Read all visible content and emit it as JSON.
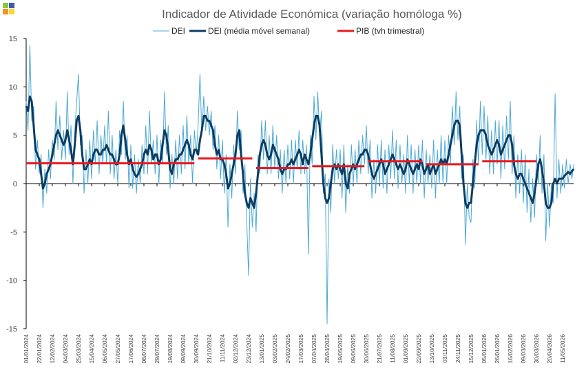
{
  "chart_data": {
    "type": "line",
    "title": "Indicador de Atividade Económica (variação homóloga %)",
    "categories": [
      "01/01/2024",
      null,
      null,
      null,
      null,
      null,
      null,
      "22/01/2024",
      null,
      null,
      null,
      null,
      null,
      null,
      "12/02/2024",
      null,
      null,
      null,
      null,
      null,
      null,
      "04/03/2024",
      null,
      null,
      null,
      null,
      null,
      null,
      "25/03/2024",
      null,
      null,
      null,
      null,
      null,
      null,
      "15/04/2024",
      null,
      null,
      null,
      null,
      null,
      null,
      "06/05/2024",
      null,
      null,
      null,
      null,
      null,
      null,
      "27/05/2024",
      null,
      null,
      null,
      null,
      null,
      null,
      "17/06/2024",
      null,
      null,
      null,
      null,
      null,
      null,
      "08/07/2024",
      null,
      null,
      null,
      null,
      null,
      null,
      "29/07/2024",
      null,
      null,
      null,
      null,
      null,
      null,
      "19/08/2024",
      null,
      null,
      null,
      null,
      null,
      null,
      "09/09/2024",
      null,
      null,
      null,
      null,
      null,
      null,
      "30/09/2024",
      null,
      null,
      null,
      null,
      null,
      null,
      "21/10/2024",
      null,
      null,
      null,
      null,
      null,
      null,
      "11/11/2024",
      null,
      null,
      null,
      null,
      null,
      null,
      "02/12/2024",
      null,
      null,
      null,
      null,
      null,
      null,
      "23/12/2024",
      null,
      null,
      null,
      null,
      null,
      null,
      "13/01/2025",
      null,
      null,
      null,
      null,
      null,
      null,
      "03/02/2025",
      null,
      null,
      null,
      null,
      null,
      null,
      "24/02/2025",
      null,
      null,
      null,
      null,
      null,
      null,
      "17/03/2025",
      null,
      null,
      null,
      null,
      null,
      null,
      "07/04/2025",
      null,
      null,
      null,
      null,
      null,
      null,
      "28/04/2025",
      null,
      null,
      null,
      null,
      null,
      null,
      "19/05/2025",
      null,
      null,
      null,
      null,
      null,
      null,
      "09/06/2025",
      null,
      null,
      null,
      null,
      null,
      null,
      "30/06/2025",
      null,
      null,
      null,
      null,
      null,
      null,
      "21/07/2025",
      null,
      null,
      null,
      null,
      null,
      null,
      "11/08/2025",
      null,
      null,
      null,
      null,
      null,
      null,
      "01/09/2025",
      null,
      null,
      null,
      null,
      null,
      null,
      "22/09/2025",
      null,
      null,
      null,
      null,
      null,
      null,
      "13/10/2025",
      null,
      null,
      null,
      null,
      null,
      null,
      "03/11/2025",
      null,
      null,
      null,
      null,
      null,
      null,
      "24/11/2025",
      null,
      null,
      null,
      null,
      null,
      null,
      "15/12/2025",
      null,
      null,
      null,
      null,
      null,
      null,
      "05/01/2026",
      null,
      null,
      null,
      null,
      null,
      null,
      "26/01/2026",
      null,
      null,
      null,
      null,
      null,
      null,
      "16/02/2026",
      null,
      null,
      null,
      null,
      null,
      null,
      "09/03/2026",
      null,
      null,
      null,
      null,
      null,
      null,
      "30/03/2026",
      null,
      null,
      null,
      null,
      null,
      null,
      "20/04/2026",
      null,
      null,
      null,
      null,
      null,
      null,
      "11/05/2026",
      null,
      null,
      null,
      null,
      null,
      null
    ],
    "series": [
      {
        "name": "DEI",
        "color": "#4ba8d6",
        "width": 1,
        "values": [
          8.5,
          5.5,
          14.3,
          6.5,
          8,
          1.5,
          4.5,
          1,
          3,
          -2.5,
          1.5,
          -1,
          3.5,
          0.5,
          4.5,
          2.5,
          8.5,
          3.5,
          7,
          2.5,
          5.5,
          2.5,
          9.5,
          3,
          6,
          0,
          5.5,
          8.5,
          11.3,
          4,
          5,
          -1,
          3.5,
          0,
          4.5,
          0.5,
          5.5,
          2,
          6.5,
          1,
          5,
          2,
          6,
          2,
          7.5,
          1,
          5,
          0.5,
          3.5,
          0,
          5.5,
          3,
          8.5,
          2.5,
          5,
          -0.5,
          4,
          -0.5,
          3,
          -1,
          2.5,
          0,
          4,
          1,
          6,
          1,
          7.5,
          2,
          4.5,
          1,
          5,
          0,
          4.5,
          2,
          9.5,
          3,
          6,
          -0.5,
          3,
          0,
          4.5,
          0.5,
          5,
          1,
          6,
          1.5,
          7,
          2,
          5,
          0,
          5.5,
          3,
          6,
          11.3,
          5,
          9,
          5.5,
          8,
          5,
          7.5,
          3.5,
          6,
          1.5,
          5,
          0.5,
          4.5,
          -1,
          3,
          -4.5,
          2,
          -1.5,
          4,
          1,
          7.5,
          3.5,
          5.5,
          -1,
          2,
          -4,
          -9.5,
          0.5,
          -4.5,
          -1,
          -5,
          3,
          1,
          6.5,
          2.5,
          6.5,
          1,
          5,
          1,
          6,
          1.5,
          5,
          0.5,
          3.5,
          -1,
          3.5,
          0,
          4,
          0.5,
          4.5,
          0,
          4.5,
          1.5,
          5.5,
          1,
          4.5,
          1,
          4,
          -7.3,
          5,
          2,
          9,
          4.5,
          9.5,
          5,
          7.5,
          -1,
          1,
          -14.5,
          0.5,
          -3,
          4,
          0,
          3.5,
          0.5,
          3.5,
          -1.5,
          4,
          -3,
          2,
          -1,
          4,
          0,
          3.5,
          0,
          4.5,
          1,
          5,
          2,
          6,
          1,
          4.5,
          -1.5,
          2.5,
          -1,
          4,
          0,
          4.5,
          -0.5,
          3.5,
          -1,
          4,
          0.5,
          5.5,
          0.5,
          4.5,
          -0.5,
          4,
          0,
          3,
          -1,
          5,
          0,
          4,
          -1,
          3.5,
          0,
          4,
          0,
          4.5,
          -1.5,
          3.5,
          0,
          3,
          -0.5,
          4.5,
          -1.5,
          3.5,
          0,
          5,
          0,
          4.5,
          0,
          5,
          2,
          8,
          4,
          9.5,
          4.5,
          8,
          0.5,
          3,
          -6.3,
          0,
          -3.5,
          -4,
          2.5,
          -0.5,
          6.5,
          2,
          8.5,
          3,
          8,
          2.5,
          7,
          1,
          5.5,
          1,
          6.5,
          2,
          6.5,
          0.5,
          6,
          1.5,
          7,
          2.5,
          8.5,
          1,
          5,
          -1.5,
          3,
          -1,
          3.5,
          -2,
          3,
          -3,
          1.5,
          -4,
          0.5,
          -3.5,
          3,
          0,
          5,
          -1,
          3,
          -5.9,
          0,
          -4.5,
          0,
          -2,
          9.3,
          -1.5,
          2.5,
          -1,
          2,
          -0.5,
          2.5,
          0,
          2,
          0.5,
          2
        ]
      },
      {
        "name": "DEI (média móvel semanal)",
        "color": "#0c3c61",
        "width": 3,
        "values": [
          8,
          7.5,
          9,
          8.5,
          6,
          3.5,
          3,
          2.5,
          1,
          -0.5,
          0,
          1,
          1.5,
          2,
          3,
          4,
          5,
          5.5,
          5,
          4.5,
          4,
          4.5,
          5.5,
          4.5,
          3.5,
          2,
          4,
          6.5,
          7,
          5.5,
          3,
          1.5,
          1.5,
          2,
          2.5,
          2,
          3,
          3.5,
          3.5,
          3,
          3,
          3.5,
          3.5,
          4,
          3.5,
          3,
          3,
          2.5,
          2,
          2,
          3,
          5,
          6,
          4.5,
          3,
          2,
          2.5,
          1.5,
          1,
          0.7,
          1,
          1.5,
          2,
          3,
          3.5,
          3,
          4,
          3.5,
          2.5,
          3,
          3,
          2,
          2.5,
          4,
          5.5,
          5,
          3.5,
          1.5,
          1,
          2,
          2.5,
          2.5,
          3,
          3,
          3.5,
          4,
          4.5,
          4,
          3,
          2.5,
          3.5,
          3.5,
          3,
          4.5,
          5.5,
          7,
          7,
          6.5,
          6.5,
          6,
          5.5,
          4,
          3,
          3.5,
          2.5,
          2.5,
          2,
          1,
          -0.5,
          0,
          1,
          2,
          3,
          5,
          5.5,
          3,
          1,
          -1,
          -2,
          -2.5,
          -1.5,
          -2,
          -2.5,
          -1,
          1,
          3,
          4,
          4.5,
          4,
          3,
          2.5,
          3,
          4,
          3.5,
          3,
          2.5,
          1.5,
          1,
          1.5,
          1.5,
          2,
          2,
          2.5,
          2,
          2.5,
          3,
          3.5,
          3,
          2,
          3,
          2.5,
          2,
          3,
          4.5,
          6,
          7,
          7,
          6,
          3,
          0,
          -1.5,
          -2,
          -1.5,
          0,
          1.5,
          2,
          1.5,
          2,
          1.5,
          1,
          2,
          0,
          -0.5,
          1,
          1.5,
          2,
          1.5,
          2,
          2.5,
          3,
          3,
          3.5,
          3.5,
          3,
          2,
          1,
          0.5,
          1,
          1.5,
          2,
          2.5,
          2,
          1,
          1.5,
          2,
          2.5,
          3,
          2.5,
          2,
          1.5,
          2,
          1.5,
          1,
          1.5,
          2.5,
          2,
          1.5,
          1,
          1.5,
          2,
          1.5,
          2.5,
          2,
          1,
          1.5,
          2,
          1,
          1.5,
          2,
          1,
          1.5,
          2,
          2.5,
          2,
          2.5,
          2,
          3,
          4,
          5,
          6,
          6.5,
          6.5,
          6,
          3,
          0,
          -2,
          -2.5,
          -2,
          -2,
          0,
          2,
          4,
          5,
          5.5,
          5.5,
          5.5,
          5,
          4,
          3.5,
          3,
          3.5,
          4,
          4.5,
          4,
          3,
          3.5,
          4,
          4.5,
          5,
          5,
          4,
          2,
          1,
          0.5,
          1,
          1,
          0.5,
          0,
          -0.5,
          -1,
          -1.5,
          -2,
          -1,
          0.5,
          2,
          2.5,
          1.5,
          0,
          -2,
          -2.5,
          -2.5,
          -2,
          0,
          0.5,
          0,
          0.5,
          0.5,
          0.5,
          0.8,
          1,
          1.2,
          1,
          1.3,
          1.5
        ]
      },
      {
        "name": "PIB (tvh trimestral)",
        "color": "#e8191e",
        "width": 3,
        "values": [
          2.1,
          2.1,
          2.1,
          2.1,
          2.1,
          2.1,
          2.1,
          2.1,
          2.1,
          2.1,
          2.1,
          2.1,
          2.1,
          2.1,
          2.1,
          2.1,
          2.1,
          2.1,
          2.1,
          2.1,
          2.1,
          2.1,
          2.1,
          2.1,
          2.1,
          2.1,
          2.1,
          2.1,
          2.1,
          2.1,
          2.1,
          2.1,
          2.1,
          2.1,
          2.1,
          2.1,
          2.1,
          2.1,
          2.1,
          2.1,
          2.1,
          2.1,
          2.1,
          2.1,
          2.1,
          2.1,
          2.1,
          2.1,
          2.1,
          2.1,
          2.1,
          2.1,
          2.1,
          2.1,
          2.1,
          2.1,
          2.1,
          2.1,
          2.1,
          2.1,
          2.1,
          2.1,
          2.1,
          2.1,
          2.1,
          2.1,
          2.1,
          2.1,
          2.1,
          2.1,
          2.1,
          2.1,
          2.1,
          2.1,
          2.1,
          2.1,
          2.1,
          2.1,
          2.1,
          2.1,
          2.1,
          2.1,
          2.1,
          2.1,
          2.1,
          2.1,
          2.1,
          2.1,
          2.1,
          2.1,
          2.1,
          null,
          2.6,
          2.6,
          2.6,
          2.6,
          2.6,
          2.6,
          2.6,
          2.6,
          2.6,
          2.6,
          2.6,
          2.6,
          2.6,
          2.6,
          2.6,
          2.6,
          2.6,
          2.6,
          2.6,
          2.6,
          2.6,
          2.6,
          2.6,
          2.6,
          2.6,
          2.6,
          2.6,
          2.6,
          2.6,
          2.6,
          null,
          1.6,
          1.6,
          1.6,
          1.6,
          1.6,
          1.6,
          1.6,
          1.6,
          1.6,
          1.6,
          1.6,
          1.6,
          1.6,
          1.6,
          1.6,
          1.6,
          1.6,
          1.6,
          1.6,
          1.6,
          1.6,
          1.6,
          1.6,
          1.6,
          1.6,
          1.6,
          1.6,
          1.6,
          1.6,
          null,
          1.8,
          1.8,
          1.8,
          1.8,
          1.8,
          1.8,
          1.8,
          1.8,
          1.8,
          1.8,
          1.8,
          1.8,
          1.8,
          1.8,
          1.8,
          1.8,
          1.8,
          1.8,
          1.8,
          1.8,
          1.8,
          1.8,
          1.8,
          1.8,
          1.8,
          1.8,
          1.8,
          1.8,
          1.8,
          null,
          2.3,
          2.3,
          2.3,
          2.3,
          2.3,
          2.3,
          2.3,
          2.3,
          2.3,
          2.3,
          2.3,
          2.3,
          2.3,
          2.3,
          2.3,
          2.3,
          2.3,
          2.3,
          2.3,
          2.3,
          2.3,
          2.3,
          2.3,
          2.3,
          2.3,
          2.3,
          2.3,
          2.3,
          2.3,
          2.3,
          null,
          2,
          2,
          2,
          2,
          2,
          2,
          2,
          2,
          2,
          2,
          2,
          2,
          2,
          2,
          2,
          2,
          2,
          2,
          2,
          2,
          2,
          2,
          2,
          2,
          2,
          2,
          2,
          2,
          2,
          null,
          2.3,
          2.3,
          2.3,
          2.3,
          2.3,
          2.3,
          2.3,
          2.3,
          2.3,
          2.3,
          2.3,
          2.3,
          2.3,
          2.3,
          2.3,
          2.3,
          2.3,
          2.3,
          2.3,
          2.3,
          2.3,
          2.3,
          2.3,
          2.3,
          2.3,
          2.3,
          2.3,
          2.3,
          2.3,
          2.3,
          null,
          null,
          null,
          null,
          null,
          null,
          null,
          null,
          null,
          null,
          null,
          null,
          null,
          null,
          null,
          null,
          null,
          null,
          null,
          null
        ]
      }
    ],
    "ylim": [
      -15,
      15
    ],
    "yticks": [
      -15,
      -10,
      -5,
      0,
      5,
      10,
      15
    ],
    "grid": false,
    "legend": "top"
  }
}
